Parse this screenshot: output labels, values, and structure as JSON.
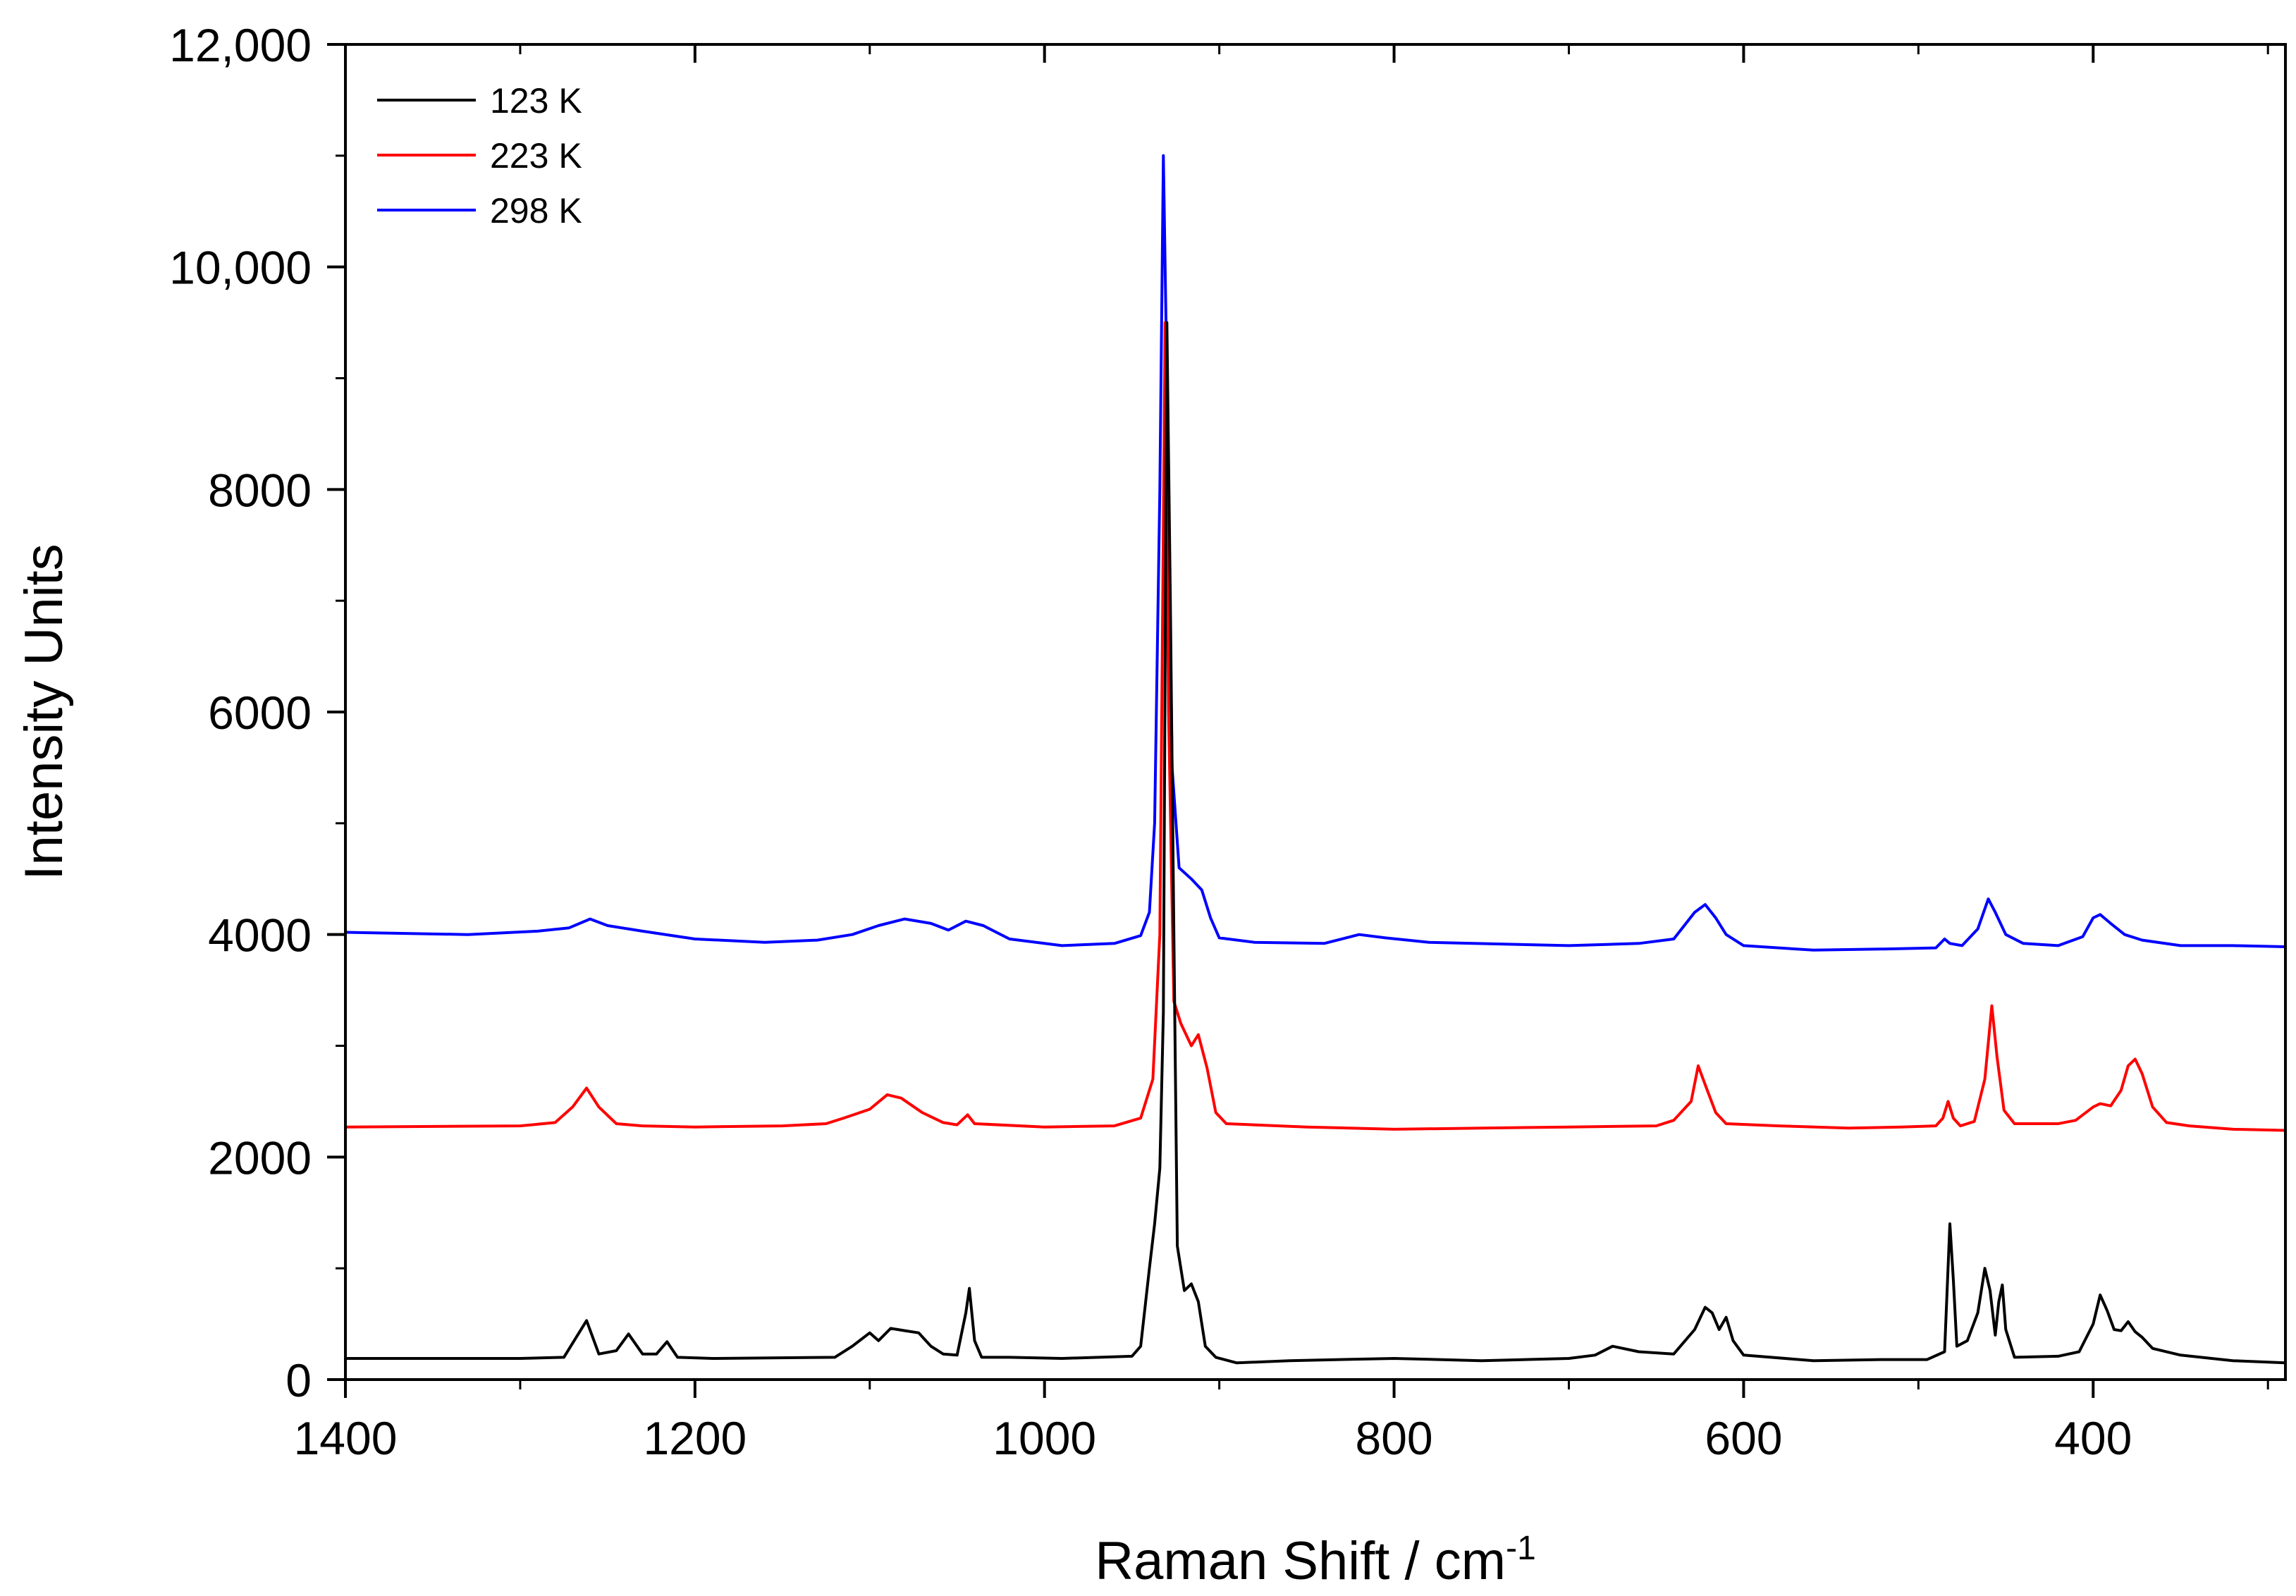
{
  "chart_data": {
    "type": "line",
    "xlabel": "Raman Shift / cm",
    "xlabel_superscript": "-1",
    "ylabel": "Intensity Units",
    "xlim": [
      1400,
      290
    ],
    "ylim": [
      0,
      12000
    ],
    "x_reversed": true,
    "x_ticks": [
      1400,
      1200,
      1000,
      800,
      600,
      400
    ],
    "x_tick_labels": [
      "1400",
      "1200",
      "1000",
      "800",
      "600",
      "400"
    ],
    "y_ticks": [
      0,
      2000,
      4000,
      6000,
      8000,
      10000,
      12000
    ],
    "y_tick_labels": [
      "0",
      "2000",
      "4000",
      "6000",
      "8000",
      "10,000",
      "12,000"
    ],
    "grid": false,
    "legend_position": "top-left",
    "series": [
      {
        "name": "123 K",
        "color": "#000000",
        "points": [
          [
            1400,
            190
          ],
          [
            1300,
            190
          ],
          [
            1275,
            200
          ],
          [
            1262,
            530
          ],
          [
            1255,
            230
          ],
          [
            1245,
            260
          ],
          [
            1238,
            410
          ],
          [
            1230,
            230
          ],
          [
            1222,
            230
          ],
          [
            1216,
            340
          ],
          [
            1210,
            200
          ],
          [
            1190,
            190
          ],
          [
            1120,
            200
          ],
          [
            1110,
            300
          ],
          [
            1100,
            420
          ],
          [
            1095,
            350
          ],
          [
            1088,
            460
          ],
          [
            1080,
            440
          ],
          [
            1072,
            420
          ],
          [
            1065,
            300
          ],
          [
            1058,
            230
          ],
          [
            1050,
            220
          ],
          [
            1045,
            600
          ],
          [
            1043,
            820
          ],
          [
            1040,
            350
          ],
          [
            1036,
            200
          ],
          [
            1020,
            200
          ],
          [
            990,
            190
          ],
          [
            950,
            210
          ],
          [
            945,
            300
          ],
          [
            940,
            1000
          ],
          [
            937,
            1400
          ],
          [
            934,
            1900
          ],
          [
            932,
            3300
          ],
          [
            930,
            9500
          ],
          [
            928,
            7000
          ],
          [
            926,
            4000
          ],
          [
            924,
            1200
          ],
          [
            920,
            800
          ],
          [
            916,
            860
          ],
          [
            912,
            700
          ],
          [
            908,
            300
          ],
          [
            902,
            200
          ],
          [
            890,
            150
          ],
          [
            860,
            170
          ],
          [
            800,
            190
          ],
          [
            750,
            170
          ],
          [
            700,
            190
          ],
          [
            685,
            220
          ],
          [
            675,
            300
          ],
          [
            660,
            250
          ],
          [
            640,
            230
          ],
          [
            628,
            450
          ],
          [
            622,
            650
          ],
          [
            618,
            600
          ],
          [
            614,
            450
          ],
          [
            610,
            560
          ],
          [
            606,
            350
          ],
          [
            600,
            220
          ],
          [
            560,
            170
          ],
          [
            520,
            180
          ],
          [
            495,
            180
          ],
          [
            485,
            250
          ],
          [
            482,
            1400
          ],
          [
            480,
            900
          ],
          [
            478,
            300
          ],
          [
            472,
            350
          ],
          [
            466,
            600
          ],
          [
            462,
            1000
          ],
          [
            459,
            800
          ],
          [
            456,
            400
          ],
          [
            454,
            700
          ],
          [
            452,
            850
          ],
          [
            450,
            450
          ],
          [
            445,
            200
          ],
          [
            420,
            210
          ],
          [
            408,
            250
          ],
          [
            400,
            500
          ],
          [
            396,
            760
          ],
          [
            392,
            620
          ],
          [
            388,
            450
          ],
          [
            384,
            440
          ],
          [
            380,
            520
          ],
          [
            376,
            430
          ],
          [
            372,
            380
          ],
          [
            366,
            280
          ],
          [
            350,
            220
          ],
          [
            320,
            170
          ],
          [
            290,
            150
          ]
        ]
      },
      {
        "name": "223 K",
        "color": "#ff0000",
        "points": [
          [
            1400,
            2270
          ],
          [
            1300,
            2280
          ],
          [
            1280,
            2310
          ],
          [
            1270,
            2450
          ],
          [
            1262,
            2620
          ],
          [
            1255,
            2450
          ],
          [
            1245,
            2300
          ],
          [
            1230,
            2280
          ],
          [
            1200,
            2270
          ],
          [
            1150,
            2280
          ],
          [
            1125,
            2300
          ],
          [
            1115,
            2350
          ],
          [
            1100,
            2430
          ],
          [
            1090,
            2560
          ],
          [
            1082,
            2530
          ],
          [
            1070,
            2400
          ],
          [
            1058,
            2310
          ],
          [
            1050,
            2290
          ],
          [
            1044,
            2380
          ],
          [
            1040,
            2300
          ],
          [
            1000,
            2270
          ],
          [
            960,
            2280
          ],
          [
            945,
            2350
          ],
          [
            938,
            2700
          ],
          [
            934,
            4000
          ],
          [
            931,
            9500
          ],
          [
            929,
            6000
          ],
          [
            926,
            3400
          ],
          [
            922,
            3200
          ],
          [
            916,
            3000
          ],
          [
            912,
            3100
          ],
          [
            907,
            2800
          ],
          [
            902,
            2400
          ],
          [
            896,
            2300
          ],
          [
            850,
            2270
          ],
          [
            800,
            2250
          ],
          [
            750,
            2260
          ],
          [
            700,
            2270
          ],
          [
            650,
            2280
          ],
          [
            640,
            2330
          ],
          [
            630,
            2500
          ],
          [
            626,
            2820
          ],
          [
            622,
            2650
          ],
          [
            616,
            2400
          ],
          [
            610,
            2300
          ],
          [
            580,
            2280
          ],
          [
            540,
            2260
          ],
          [
            510,
            2270
          ],
          [
            490,
            2280
          ],
          [
            486,
            2350
          ],
          [
            483,
            2500
          ],
          [
            480,
            2350
          ],
          [
            476,
            2280
          ],
          [
            468,
            2320
          ],
          [
            462,
            2700
          ],
          [
            458,
            3360
          ],
          [
            455,
            2900
          ],
          [
            451,
            2420
          ],
          [
            445,
            2300
          ],
          [
            420,
            2300
          ],
          [
            410,
            2330
          ],
          [
            400,
            2450
          ],
          [
            396,
            2480
          ],
          [
            390,
            2460
          ],
          [
            384,
            2600
          ],
          [
            380,
            2820
          ],
          [
            376,
            2880
          ],
          [
            372,
            2750
          ],
          [
            366,
            2450
          ],
          [
            358,
            2310
          ],
          [
            345,
            2280
          ],
          [
            320,
            2250
          ],
          [
            290,
            2240
          ]
        ]
      },
      {
        "name": "298 K",
        "color": "#0000ff",
        "points": [
          [
            1400,
            4020
          ],
          [
            1330,
            4000
          ],
          [
            1290,
            4030
          ],
          [
            1272,
            4060
          ],
          [
            1260,
            4140
          ],
          [
            1250,
            4080
          ],
          [
            1230,
            4030
          ],
          [
            1200,
            3960
          ],
          [
            1160,
            3930
          ],
          [
            1130,
            3950
          ],
          [
            1110,
            4000
          ],
          [
            1095,
            4080
          ],
          [
            1080,
            4140
          ],
          [
            1065,
            4100
          ],
          [
            1055,
            4040
          ],
          [
            1045,
            4120
          ],
          [
            1035,
            4080
          ],
          [
            1020,
            3960
          ],
          [
            990,
            3900
          ],
          [
            960,
            3920
          ],
          [
            945,
            3990
          ],
          [
            940,
            4200
          ],
          [
            937,
            5000
          ],
          [
            934,
            8000
          ],
          [
            932,
            11000
          ],
          [
            930,
            9000
          ],
          [
            927,
            5500
          ],
          [
            923,
            4600
          ],
          [
            916,
            4500
          ],
          [
            910,
            4400
          ],
          [
            905,
            4150
          ],
          [
            900,
            3970
          ],
          [
            880,
            3930
          ],
          [
            840,
            3920
          ],
          [
            820,
            4000
          ],
          [
            805,
            3970
          ],
          [
            780,
            3930
          ],
          [
            700,
            3900
          ],
          [
            660,
            3920
          ],
          [
            640,
            3960
          ],
          [
            628,
            4200
          ],
          [
            622,
            4270
          ],
          [
            616,
            4150
          ],
          [
            610,
            4000
          ],
          [
            600,
            3900
          ],
          [
            560,
            3860
          ],
          [
            520,
            3870
          ],
          [
            490,
            3880
          ],
          [
            485,
            3960
          ],
          [
            482,
            3920
          ],
          [
            475,
            3900
          ],
          [
            466,
            4050
          ],
          [
            460,
            4320
          ],
          [
            456,
            4200
          ],
          [
            450,
            4000
          ],
          [
            440,
            3920
          ],
          [
            420,
            3900
          ],
          [
            406,
            3980
          ],
          [
            400,
            4150
          ],
          [
            396,
            4180
          ],
          [
            390,
            4100
          ],
          [
            382,
            4000
          ],
          [
            372,
            3950
          ],
          [
            350,
            3900
          ],
          [
            320,
            3900
          ],
          [
            290,
            3890
          ]
        ]
      }
    ]
  }
}
